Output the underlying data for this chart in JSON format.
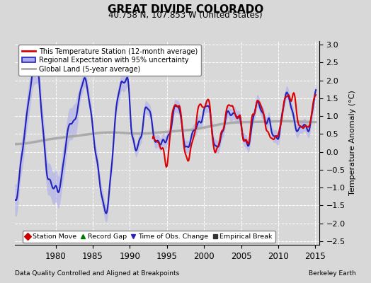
{
  "title": "GREAT DIVIDE COLORADO",
  "subtitle": "40.758 N, 107.853 W (United States)",
  "xlabel_note": "Data Quality Controlled and Aligned at Breakpoints",
  "xlabel_right": "Berkeley Earth",
  "ylabel": "Temperature Anomaly (°C)",
  "xlim": [
    1974.5,
    2015.5
  ],
  "ylim": [
    -2.6,
    3.1
  ],
  "yticks": [
    -2.5,
    -2,
    -1.5,
    -1,
    -0.5,
    0,
    0.5,
    1,
    1.5,
    2,
    2.5,
    3
  ],
  "xticks": [
    1980,
    1985,
    1990,
    1995,
    2000,
    2005,
    2010,
    2015
  ],
  "bg_color": "#d8d8d8",
  "plot_bg_color": "#d8d8d8",
  "red_color": "#dd0000",
  "blue_color": "#2222bb",
  "blue_fill_color": "#aaaaee",
  "gray_color": "#aaaaaa",
  "gray_lw": 2.5,
  "blue_lw": 1.5,
  "red_lw": 1.5,
  "legend_entries": [
    "This Temperature Station (12-month average)",
    "Regional Expectation with 95% uncertainty",
    "Global Land (5-year average)"
  ],
  "bottom_legend": [
    {
      "marker": "D",
      "color": "#cc0000",
      "label": "Station Move"
    },
    {
      "marker": "^",
      "color": "#007700",
      "label": "Record Gap"
    },
    {
      "marker": "v",
      "color": "#2222bb",
      "label": "Time of Obs. Change"
    },
    {
      "marker": "s",
      "color": "#333333",
      "label": "Empirical Break"
    }
  ]
}
